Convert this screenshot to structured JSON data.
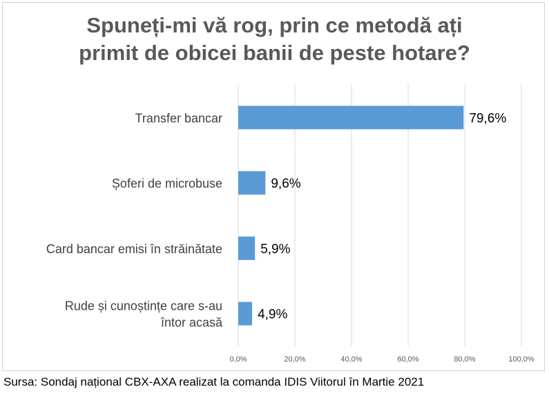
{
  "chart_data": {
    "type": "bar",
    "orientation": "horizontal",
    "title": [
      "Spuneți-mi vă rog, prin ce metodă ați",
      "primit de obicei banii de peste hotare?"
    ],
    "categories": [
      [
        "Transfer bancar"
      ],
      [
        "Șoferi de microbuse"
      ],
      [
        "Card bancar emisi în străinătate"
      ],
      [
        "Rude și cunoștințe care s-au",
        "întor acasă"
      ]
    ],
    "values": [
      79.6,
      9.6,
      5.9,
      4.9
    ],
    "value_labels": [
      "79,6%",
      "9,6%",
      "5,9%",
      "4,9%"
    ],
    "xlim": [
      0,
      100
    ],
    "x_ticks": [
      0,
      20,
      40,
      60,
      80,
      100
    ],
    "x_tick_labels": [
      "0,0%",
      "20,0%",
      "40,0%",
      "60,0%",
      "80,0%",
      "100,0%"
    ],
    "grid": true,
    "bar_color": "#5b9bd5"
  },
  "footer": {
    "source": "Sursa: Sondaj național CBX-AXA realizat la comanda IDIS Viitorul în Martie 2021"
  }
}
